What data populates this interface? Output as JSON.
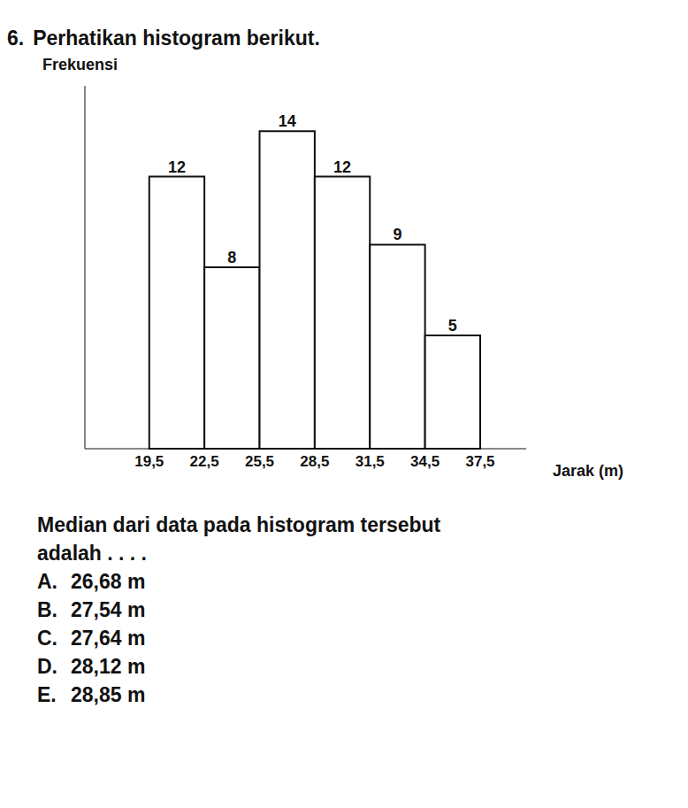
{
  "question": {
    "number": "6.",
    "intro": "Perhatikan histogram berikut.",
    "prompt": [
      "Median dari data pada histogram tersebut",
      "adalah . . . ."
    ],
    "options": [
      {
        "letter": "A.",
        "text": "26,68 m"
      },
      {
        "letter": "B.",
        "text": "27,54 m"
      },
      {
        "letter": "C.",
        "text": "27,64 m"
      },
      {
        "letter": "D.",
        "text": "28,12 m"
      },
      {
        "letter": "E.",
        "text": "28,85 m"
      }
    ]
  },
  "chart_data": {
    "type": "histogram",
    "y_label": "Frekuensi",
    "x_label": "Jarak (m)",
    "bins": [
      19.5,
      22.5,
      25.5,
      28.5,
      31.5,
      34.5,
      37.5
    ],
    "values": [
      12,
      8,
      14,
      12,
      9,
      5
    ],
    "xlim": [
      16,
      40
    ],
    "xticks": [
      {
        "value": 19.5,
        "label": "19,5"
      },
      {
        "value": 22.5,
        "label": "22,5"
      },
      {
        "value": 25.5,
        "label": "25,5"
      },
      {
        "value": 28.5,
        "label": "28,5"
      },
      {
        "value": 31.5,
        "label": "31,5"
      },
      {
        "value": 34.5,
        "label": "34,5"
      },
      {
        "value": 37.5,
        "label": "37,5"
      }
    ],
    "ylim": [
      0,
      16
    ],
    "data_labels": true,
    "tick_labels": "x",
    "grid": false,
    "color": "#ffffff"
  }
}
